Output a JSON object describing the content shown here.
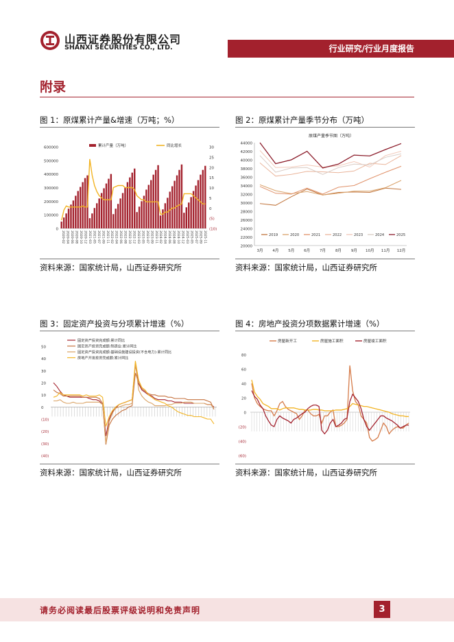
{
  "header": {
    "company_cn": "山西证券股份有限公司",
    "company_en": "SHANXI SECURITIES CO., LTD.",
    "report_type": "行业研究/行业月度报告"
  },
  "section_title": "附录",
  "figures": [
    {
      "title": "图 1：原煤累计产量&增速（万吨；%）",
      "source": "资料来源：国家统计局，山西证券研究所"
    },
    {
      "title": "图 2：原煤累计产量季节分布（万吨）",
      "source": "资料来源：国家统计局，山西证券研究所"
    },
    {
      "title": "图 3：固定资产投资与分项累计增速（%）",
      "source": "资料来源：国家统计局，山西证券研究所"
    },
    {
      "title": "图 4：房地产投资分项数据累计增速（%）",
      "source": "资料来源：国家统计局，山西证券研究所"
    }
  ],
  "colors": {
    "brand": "#a3212d",
    "bar": "#a3212d",
    "yellow": "#f2b322"
  },
  "footer": {
    "disclaimer": "请务必阅读最后股票评级说明和免责声明",
    "page": "3"
  },
  "chart_data": [
    {
      "type": "bar",
      "legend_position": "top",
      "x_tick_labels": [
        "2020-02",
        "2020-04",
        "2020-06",
        "2020-08",
        "2020-10",
        "2020-12",
        "2021-03",
        "2021-05",
        "2021-07",
        "2021-09",
        "2021-11",
        "2022-02",
        "2022-04",
        "2022-06",
        "2022-08",
        "2022-10",
        "2022-12",
        "2023-03",
        "2023-05",
        "2023-07",
        "2023-09",
        "2023-11",
        "2024-02",
        "2024-04",
        "2024-06",
        "2024-08",
        "2024-10",
        "2024-12",
        "2025-03",
        "2025-05",
        "2025-07",
        "2025-09",
        "2025-11"
      ],
      "y_tick_labels": [
        "0",
        "100000",
        "200000",
        "300000",
        "400000",
        "500000",
        "600000"
      ],
      "y2_tick_labels": [
        "(10)",
        "(5)",
        "0",
        "5",
        "10",
        "15",
        "20",
        "25",
        "30"
      ],
      "ylim": [
        0,
        600000
      ],
      "y2lim": [
        -10,
        30
      ],
      "series": [
        {
          "name": "累计产量（万吨）",
          "type": "bar",
          "values": [
            50000,
            80000,
            110000,
            145000,
            175000,
            205000,
            240000,
            275000,
            305000,
            340000,
            370000,
            390000,
            75000,
            110000,
            150000,
            185000,
            220000,
            260000,
            295000,
            330000,
            365000,
            400000,
            105000,
            145000,
            180000,
            220000,
            260000,
            300000,
            340000,
            375000,
            410000,
            440000,
            120000,
            160000,
            200000,
            240000,
            285000,
            320000,
            355000,
            395000,
            430000,
            465000,
            95000,
            140000,
            185000,
            225000,
            270000,
            310000,
            350000,
            390000,
            430000,
            470000,
            115000,
            155000,
            190000,
            230000,
            275000,
            315000,
            355000,
            395000,
            430000,
            460000
          ]
        },
        {
          "name": "同比增长",
          "type": "line",
          "values": [
            -6,
            -1,
            1,
            0.5,
            0.5,
            0.5,
            0.5,
            0.5,
            0.5,
            1,
            0.5,
            0.5,
            24,
            16,
            11,
            8,
            6,
            5,
            4,
            4,
            4,
            4,
            10,
            10.5,
            11,
            11,
            11,
            10,
            10,
            10,
            10,
            9,
            6,
            5,
            4,
            4,
            3,
            3,
            3,
            3,
            3,
            3,
            -3,
            -3,
            -2,
            -2,
            -1,
            0,
            0,
            1,
            1.5,
            2,
            7,
            7,
            7,
            7,
            6,
            5,
            4,
            3,
            2,
            2
          ]
        }
      ]
    },
    {
      "type": "line",
      "title": "原煤产量季节图（万吨）",
      "legend_position": "bottom",
      "categories": [
        "3月",
        "4月",
        "5月",
        "6月",
        "7月",
        "8月",
        "9月",
        "10月",
        "11月",
        "12月"
      ],
      "y_tick_labels": [
        "20000",
        "22000",
        "24000",
        "26000",
        "28000",
        "30000",
        "32000",
        "34000",
        "36000",
        "38000",
        "40000",
        "42000",
        "44000"
      ],
      "ylim": [
        20000,
        44000
      ],
      "series": [
        {
          "name": "2019",
          "values": [
            29800,
            29400,
            31400,
            33200,
            31800,
            32400,
            32500,
            32400,
            33400,
            33100
          ]
        },
        {
          "name": "2020",
          "values": [
            34200,
            32800,
            32100,
            32600,
            31800,
            32200,
            32700,
            32700,
            33500,
            35200
          ]
        },
        {
          "name": "2021",
          "values": [
            33800,
            32200,
            32000,
            33400,
            32000,
            33600,
            34000,
            35600,
            37100,
            38500
          ]
        },
        {
          "name": "2022",
          "values": [
            39300,
            36200,
            36600,
            37300,
            37200,
            37000,
            37400,
            39200,
            38900,
            41000
          ]
        },
        {
          "name": "2023",
          "values": [
            42200,
            38200,
            38300,
            38800,
            38300,
            38600,
            39600,
            38300,
            41000,
            42000
          ]
        },
        {
          "name": "2024",
          "values": [
            41000,
            37100,
            38100,
            38200,
            36600,
            38200,
            39000,
            38800,
            40600,
            41400
          ]
        },
        {
          "name": "2025",
          "values": [
            44000,
            39100,
            40000,
            42000,
            38100,
            39000,
            41100,
            40900,
            42400,
            43800
          ]
        }
      ]
    },
    {
      "type": "line",
      "legend_position": "top-left",
      "y_tick_labels": [
        "(40)",
        "(30)",
        "(20)",
        "(10)",
        "0",
        "10",
        "20",
        "30",
        "40",
        "50"
      ],
      "ylim": [
        -40,
        50
      ],
      "series": [
        {
          "name": "固定资产投资完成额:累计同比",
          "values": [
            20,
            17,
            13,
            10,
            9,
            8,
            8,
            8,
            8,
            8,
            8,
            7,
            6,
            6,
            5,
            2,
            -24,
            -10,
            -4,
            -1,
            2,
            3,
            4,
            5,
            6,
            35,
            19,
            14,
            12,
            10,
            9,
            7,
            6,
            6,
            6,
            5,
            5,
            4,
            4,
            4,
            3,
            3,
            3,
            3,
            3,
            3,
            3,
            2,
            2,
            0
          ]
        },
        {
          "name": "固定资产投资完成额:制造业:累计同比",
          "values": [
            14,
            12,
            11,
            9,
            9,
            9,
            9,
            9,
            9,
            8,
            8,
            8,
            8,
            8,
            7,
            3,
            -31,
            -15,
            -10,
            -7,
            -5,
            -3,
            -2,
            0,
            1,
            28,
            20,
            15,
            13,
            11,
            10,
            10,
            9,
            9,
            9,
            8,
            8,
            7,
            7,
            7,
            7,
            6,
            6,
            6,
            6,
            6,
            6,
            5,
            4,
            -2
          ]
        },
        {
          "name": "固定资产投资完成额:基础设施建设投资(不含电力):累计同比",
          "values": [
            5,
            5,
            6,
            4,
            3,
            3,
            4,
            3,
            3,
            3,
            4,
            4,
            4,
            4,
            4,
            2,
            -30,
            -12,
            -5,
            -1,
            0,
            1,
            2,
            2,
            3,
            36,
            14,
            9,
            6,
            4,
            3,
            1,
            1,
            1,
            1,
            2,
            2,
            3,
            3,
            3,
            4,
            4,
            4,
            3,
            3,
            3,
            3,
            2,
            2,
            -1
          ]
        },
        {
          "name": "房地产开发投资完成额:累计同比",
          "values": [
            8,
            9,
            12,
            10,
            10,
            10,
            10,
            10,
            10,
            9,
            10,
            9,
            9,
            9,
            10,
            8,
            -16,
            -8,
            -3,
            0,
            2,
            3,
            4,
            5,
            6,
            38,
            22,
            16,
            14,
            10,
            8,
            6,
            5,
            4,
            3,
            1,
            0,
            -2,
            -4,
            -5,
            -6,
            -7,
            -7,
            -8,
            -8,
            -8,
            -9,
            -10,
            -10,
            -14
          ]
        }
      ]
    },
    {
      "type": "line",
      "legend_position": "top",
      "y_tick_labels": [
        "(60)",
        "(40)",
        "(20)",
        "0",
        "20",
        "40",
        "60",
        "80"
      ],
      "ylim": [
        -60,
        80
      ],
      "series": [
        {
          "name": "房屋新开工",
          "values": [
            40,
            20,
            12,
            8,
            5,
            3,
            2,
            2,
            -5,
            2,
            12,
            15,
            8,
            4,
            2,
            0,
            -2,
            -10,
            -5,
            3,
            3,
            -2,
            -5,
            -5,
            -3,
            -15,
            -5,
            -5,
            0,
            3,
            -20,
            -20,
            -18,
            -15,
            -10,
            65,
            30,
            15,
            10,
            -5,
            -10,
            -15,
            -35,
            -40,
            -38,
            -35,
            -25,
            -15,
            -20,
            -30,
            -25,
            -22,
            -20,
            -22,
            -22,
            -18,
            -15
          ]
        },
        {
          "name": "房屋施工面积",
          "values": [
            45,
            28,
            22,
            18,
            12,
            10,
            8,
            5,
            5,
            5,
            3,
            5,
            6,
            6,
            6,
            6,
            5,
            4,
            4,
            3,
            3,
            3,
            4,
            4,
            3,
            3,
            2,
            2,
            2,
            2,
            3,
            3,
            3,
            4,
            5,
            8,
            12,
            11,
            10,
            9,
            8,
            8,
            7,
            6,
            5,
            4,
            3,
            2,
            1,
            0,
            -2,
            -3,
            -4,
            -5,
            -5,
            -6,
            -6
          ]
        },
        {
          "name": "房屋竣工面积",
          "values": [
            30,
            22,
            18,
            10,
            5,
            -5,
            -12,
            -18,
            -20,
            -10,
            -5,
            -8,
            -10,
            -12,
            -15,
            -10,
            -8,
            -5,
            -2,
            0,
            5,
            8,
            10,
            10,
            8,
            -25,
            -30,
            -25,
            -15,
            -10,
            -20,
            -18,
            -15,
            -10,
            -8,
            15,
            25,
            20,
            15,
            5,
            -10,
            -20,
            -25,
            -20,
            -15,
            -10,
            -5,
            -5,
            -8,
            -10,
            -12,
            -15,
            -18,
            -22,
            -20,
            -18,
            -18
          ]
        }
      ]
    }
  ]
}
